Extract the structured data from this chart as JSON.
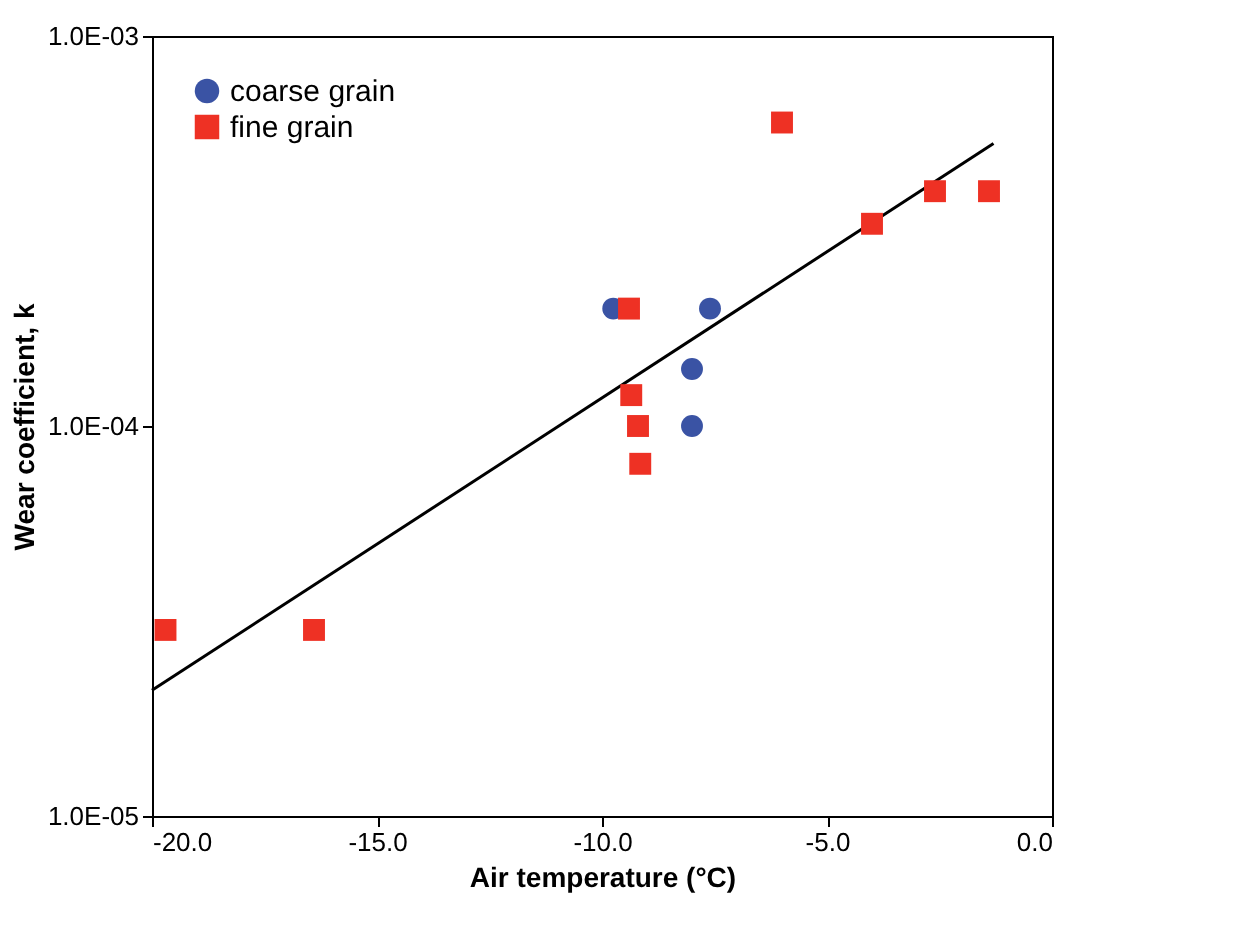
{
  "chart_data": {
    "type": "scatter",
    "xlabel": "Air temperature (°C)",
    "ylabel": "Wear coefficient, k",
    "log": "y",
    "xlim": [
      -20,
      0
    ],
    "xticks": [
      {
        "value": -20,
        "label": "-20.0"
      },
      {
        "value": -15,
        "label": "-15.0"
      },
      {
        "value": -10,
        "label": "-10.0"
      },
      {
        "value": -5,
        "label": "-5.0"
      },
      {
        "value": 0,
        "label": "0.0"
      }
    ],
    "ylim": [
      1e-05,
      0.001
    ],
    "yticks": [
      {
        "value": 1e-05,
        "label": "1.0E-05"
      },
      {
        "value": 0.0001,
        "label": "1.0E-04"
      },
      {
        "value": 0.001,
        "label": "1.0E-03"
      }
    ],
    "grid": false,
    "legend": "top left",
    "series": [
      {
        "name": "coarse grain",
        "color": "#3a53a4",
        "marker": "circle",
        "x": [
          -9.75,
          -7.6,
          -8.0,
          -8.0
        ],
        "values": [
          0.0002,
          0.0002,
          0.00014,
          0.0001
        ]
      },
      {
        "name": "fine grain",
        "color": "#ee3124",
        "marker": "square",
        "x": [
          -19.7,
          -16.5,
          -16.4,
          -9.4,
          -9.35,
          -9.2,
          -9.15,
          -6.0,
          -4.0,
          -2.6,
          -1.4
        ],
        "values": [
          3e-05,
          null,
          3e-05,
          0.0002,
          0.00012,
          0.0001,
          8e-05,
          0.0006,
          0.00033,
          0.0004,
          0.0004
        ]
      },
      {
        "type": "line",
        "color": "#000000",
        "marker": "none",
        "x": [
          -20,
          -1.3
        ],
        "values": [
          2.1e-05,
          0.00053
        ]
      }
    ]
  }
}
